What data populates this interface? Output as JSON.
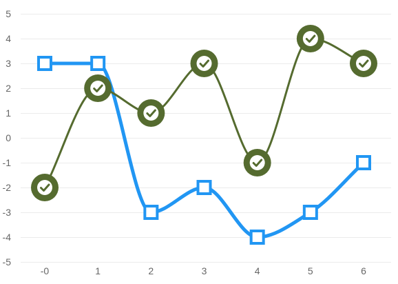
{
  "chart_data": {
    "type": "line",
    "x": [
      0,
      1,
      2,
      3,
      4,
      5,
      6
    ],
    "x_tick_labels": [
      "-0",
      "1",
      "2",
      "3",
      "4",
      "5",
      "6"
    ],
    "y_ticks": [
      5,
      4,
      3,
      2,
      1,
      0,
      -1,
      -2,
      -3,
      -4,
      -5
    ],
    "y_tick_labels": [
      "5",
      "4",
      "3",
      "2",
      "1",
      "0",
      "-1",
      "-2",
      "-3",
      "-4",
      "-5"
    ],
    "ylim": [
      -5,
      5
    ],
    "xlim": [
      0,
      6
    ],
    "grid": "horizontal",
    "legend": "none",
    "smooth": true,
    "series": [
      {
        "values": [
          3,
          3,
          -3,
          -2,
          -4,
          -3,
          -1
        ],
        "color": "#2196f3",
        "marker": "square",
        "marker_fill": "#ffffff"
      },
      {
        "values": [
          -2,
          2,
          1,
          3,
          -1,
          4,
          3
        ],
        "color": "#556b2f",
        "marker": "circle-check",
        "marker_fill": "#556b2f",
        "icon_color": "#ffffff"
      }
    ]
  }
}
